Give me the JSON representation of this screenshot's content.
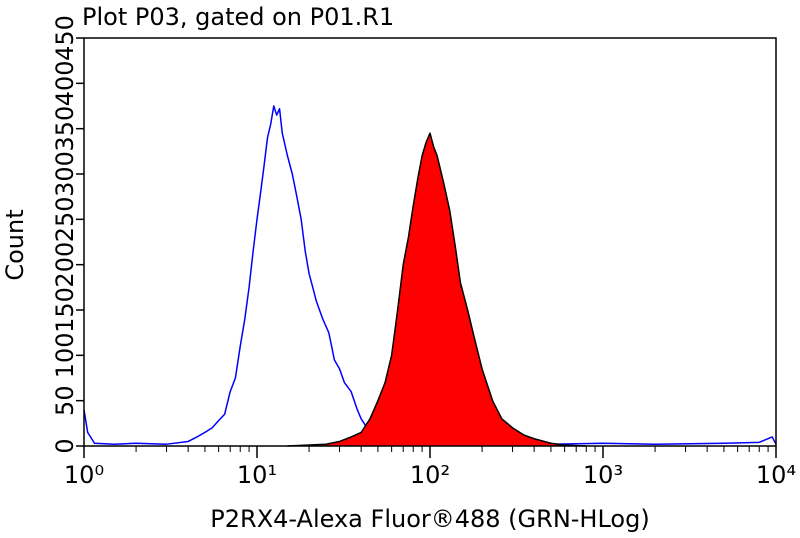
{
  "chart_data": {
    "type": "histogram-overlay",
    "title": "Plot P03, gated on P01.R1",
    "x_label": "P2RX4-Alexa Fluor®488 (GRN-HLog)",
    "y_label": "Count",
    "x_scale": "log",
    "xlim": [
      1,
      10000
    ],
    "xticks": [
      {
        "value": 1,
        "label": "10⁰"
      },
      {
        "value": 10,
        "label": "10¹"
      },
      {
        "value": 100,
        "label": "10²"
      },
      {
        "value": 1000,
        "label": "10³"
      },
      {
        "value": 10000,
        "label": "10⁴"
      }
    ],
    "xminorticks": [
      2,
      3,
      4,
      5,
      6,
      7,
      8,
      9,
      20,
      30,
      40,
      50,
      60,
      70,
      80,
      90,
      200,
      300,
      400,
      500,
      600,
      700,
      800,
      900,
      2000,
      3000,
      4000,
      5000,
      6000,
      7000,
      8000,
      9000
    ],
    "ylim": [
      0,
      450
    ],
    "yticks": [
      0,
      50,
      100,
      150,
      200,
      250,
      300,
      350,
      400,
      450
    ],
    "series": [
      {
        "color": "#0000ff",
        "fill": null,
        "x": [
          1,
          1.05,
          1.15,
          1.5,
          2,
          3,
          4,
          4.5,
          5,
          5.5,
          6,
          6.5,
          7,
          7.5,
          8,
          8.5,
          9,
          9.5,
          10,
          10.5,
          11,
          11.5,
          12,
          12.5,
          13,
          13.5,
          14,
          15,
          16,
          17,
          18,
          19,
          20,
          21,
          22,
          24,
          26,
          27,
          28,
          30,
          32,
          35,
          38,
          40,
          45,
          50,
          55,
          70,
          100,
          200,
          500,
          1000,
          2000,
          5000,
          8000,
          9500,
          10000
        ],
        "values": [
          40,
          15,
          3,
          2,
          3,
          2,
          5,
          10,
          15,
          20,
          28,
          35,
          60,
          75,
          110,
          140,
          175,
          215,
          250,
          280,
          310,
          340,
          355,
          375,
          365,
          372,
          345,
          320,
          300,
          275,
          250,
          215,
          190,
          175,
          160,
          140,
          125,
          110,
          95,
          85,
          70,
          60,
          40,
          30,
          15,
          8,
          4,
          3,
          2,
          2,
          2,
          3,
          2,
          3,
          4,
          10,
          2
        ]
      },
      {
        "color": "#000000",
        "fill": "#ff0000",
        "x": [
          15,
          25,
          30,
          35,
          40,
          45,
          50,
          55,
          60,
          65,
          70,
          75,
          80,
          85,
          90,
          95,
          100,
          105,
          110,
          120,
          130,
          140,
          150,
          165,
          180,
          200,
          230,
          260,
          300,
          350,
          400,
          500,
          600,
          800
        ],
        "values": [
          0,
          2,
          5,
          10,
          15,
          30,
          50,
          70,
          100,
          150,
          200,
          230,
          265,
          295,
          320,
          335,
          345,
          330,
          320,
          290,
          260,
          220,
          180,
          150,
          120,
          85,
          50,
          30,
          20,
          12,
          8,
          3,
          1,
          0
        ]
      }
    ]
  }
}
